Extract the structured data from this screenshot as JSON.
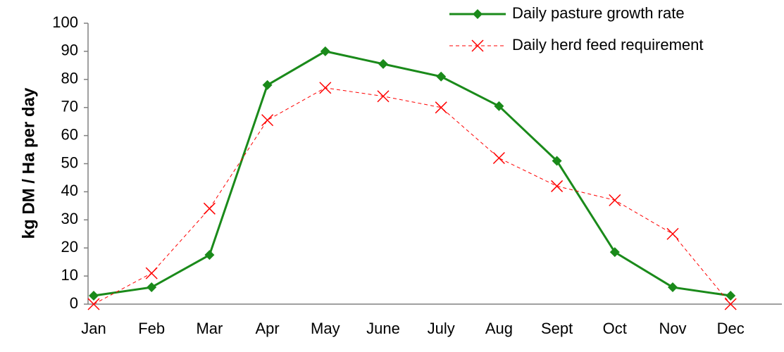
{
  "chart_data": {
    "type": "line",
    "ylabel": "kg DM / Ha per day",
    "categories": [
      "Jan",
      "Feb",
      "Mar",
      "Apr",
      "May",
      "June",
      "July",
      "Aug",
      "Sept",
      "Oct",
      "Nov",
      "Dec"
    ],
    "series": [
      {
        "name": "Daily pasture growth rate",
        "color": "#1a8a1a",
        "marker": "diamond",
        "dashed": false,
        "values": [
          3,
          6,
          17.5,
          78,
          90,
          85.5,
          81,
          70.5,
          51,
          18.5,
          6,
          3
        ]
      },
      {
        "name": "Daily herd feed requirement",
        "color": "#ff0000",
        "marker": "x",
        "dashed": true,
        "values": [
          0,
          11,
          34,
          65.5,
          77,
          74,
          70,
          52,
          42,
          37,
          25,
          0
        ]
      }
    ],
    "ylim": [
      0,
      100
    ],
    "yticks": [
      0,
      10,
      20,
      30,
      40,
      50,
      60,
      70,
      80,
      90,
      100
    ],
    "grid": false,
    "legend": "top-right"
  }
}
